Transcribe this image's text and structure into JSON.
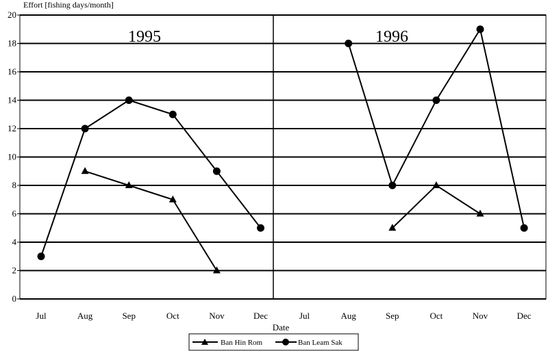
{
  "chart_data": {
    "type": "line",
    "ylabel": "Effort [fishing days/month]",
    "xlabel": "Date",
    "ylim": [
      0,
      20
    ],
    "ytick_step": 2,
    "grid": "horizontal",
    "legend_position": "bottom",
    "periods": [
      "1995",
      "1996"
    ],
    "categories": [
      "Jul",
      "Aug",
      "Sep",
      "Oct",
      "Nov",
      "Dec",
      "Jul",
      "Aug",
      "Sep",
      "Oct",
      "Nov",
      "Dec"
    ],
    "series": [
      {
        "name": "Ban Hin Rom",
        "marker": "triangle",
        "values": [
          null,
          9,
          8,
          7,
          2,
          null,
          null,
          null,
          5,
          8,
          6,
          null
        ]
      },
      {
        "name": "Ban Leam Sak",
        "marker": "circle",
        "values": [
          3,
          12,
          14,
          13,
          9,
          5,
          null,
          18,
          8,
          14,
          19,
          5
        ]
      }
    ]
  }
}
